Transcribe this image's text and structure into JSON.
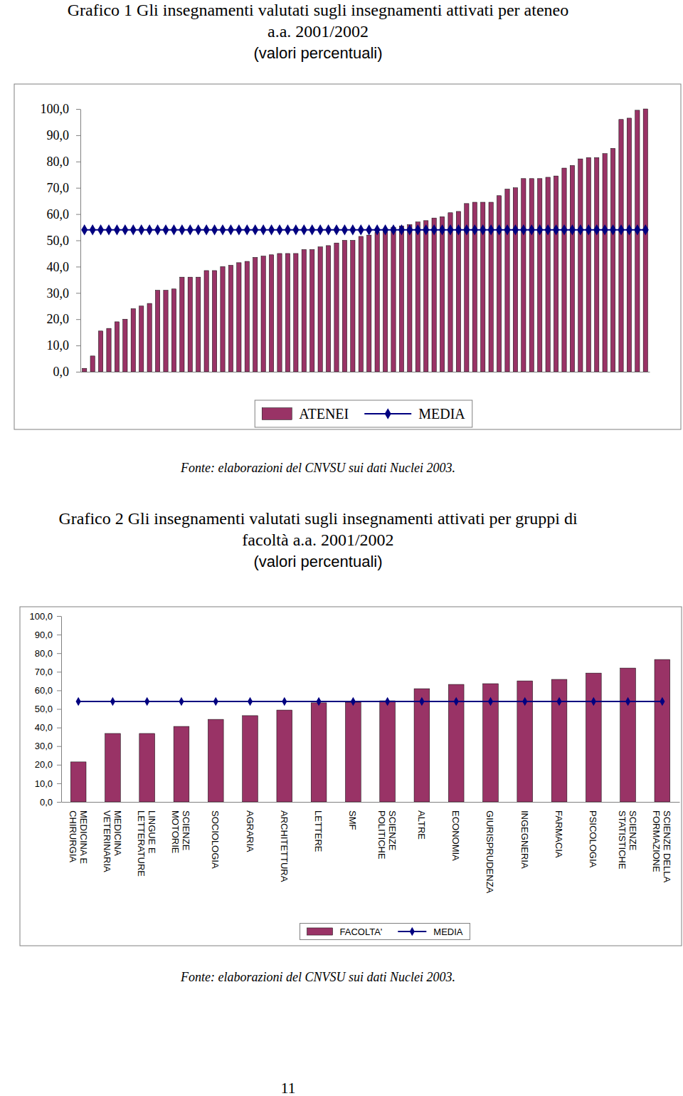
{
  "chart_data": [
    {
      "type": "bar",
      "title": "Grafico 1 Gli insegnamenti valutati sugli insegnamenti attivati per ateneo a.a. 2001/2002",
      "subtitle": "(valori percentuali)",
      "categories": [
        null,
        null,
        null,
        null,
        null,
        null,
        null,
        null,
        null,
        null,
        null,
        null,
        null,
        null,
        null,
        null,
        null,
        null,
        null,
        null,
        null,
        null,
        null,
        null,
        null,
        null,
        null,
        null,
        null,
        null,
        null,
        null,
        null,
        null,
        null,
        null,
        null,
        null,
        null,
        null,
        null,
        null,
        null,
        null,
        null,
        null,
        null,
        null,
        null,
        null,
        null,
        null,
        null,
        null,
        null,
        null,
        null,
        null,
        null,
        null,
        null,
        null,
        null,
        null,
        null,
        null,
        null,
        null,
        null,
        null
      ],
      "series": [
        {
          "name": "ATENEI",
          "type": "bar",
          "color": "#993366",
          "values": [
            1.3,
            6,
            15.5,
            16.5,
            19,
            20,
            24,
            25,
            26,
            31,
            31,
            31.5,
            36,
            36,
            36,
            38.5,
            38.5,
            40,
            40.5,
            41.5,
            42,
            43.5,
            44,
            44.5,
            45,
            45,
            45,
            46.5,
            46.5,
            47.5,
            48,
            49,
            50,
            50,
            51.5,
            52,
            53,
            54,
            55,
            55.5,
            56,
            57,
            57.5,
            58.5,
            59,
            60.5,
            61,
            64,
            64.5,
            64.5,
            64.5,
            67,
            69.5,
            70,
            73.5,
            73.5,
            73.5,
            74,
            74.5,
            77.5,
            78.5,
            81,
            81.5,
            81.5,
            83,
            85,
            96,
            96.5,
            99.5,
            100
          ]
        },
        {
          "name": "MEDIA",
          "type": "line",
          "color": "#000080",
          "marker": "diamond",
          "values": [
            54,
            54,
            54,
            54,
            54,
            54,
            54,
            54,
            54,
            54,
            54,
            54,
            54,
            54,
            54,
            54,
            54,
            54,
            54,
            54,
            54,
            54,
            54,
            54,
            54,
            54,
            54,
            54,
            54,
            54,
            54,
            54,
            54,
            54,
            54,
            54,
            54,
            54,
            54,
            54,
            54,
            54,
            54,
            54,
            54,
            54,
            54,
            54,
            54,
            54,
            54,
            54,
            54,
            54,
            54,
            54,
            54,
            54,
            54,
            54,
            54,
            54,
            54,
            54,
            54,
            54,
            54,
            54,
            54,
            54
          ]
        }
      ],
      "ylim": [
        0,
        100
      ],
      "yticks": [
        {
          "value": 0,
          "label": "0,0"
        },
        {
          "value": 10,
          "label": "10,0"
        },
        {
          "value": 20,
          "label": "20,0"
        },
        {
          "value": 30,
          "label": "30,0"
        },
        {
          "value": 40,
          "label": "40,0"
        },
        {
          "value": 50,
          "label": "50,0"
        },
        {
          "value": 60,
          "label": "60,0"
        },
        {
          "value": 70,
          "label": "70,0"
        },
        {
          "value": 80,
          "label": "80,0"
        },
        {
          "value": 90,
          "label": "90,0"
        },
        {
          "value": 100,
          "label": "100,0"
        }
      ],
      "grid": false,
      "legend": "bottom",
      "annotations": [
        "Fonte: elaborazioni del CNVSU sui dati Nuclei 2003."
      ]
    },
    {
      "type": "bar",
      "title": "Grafico 2 Gli insegnamenti valutati sugli insegnamenti attivati per gruppi di facoltà a.a. 2001/2002",
      "subtitle": "(valori percentuali)",
      "categories": [
        "MEDICINA E CHIRURGIA",
        "MEDICINA VETERINARIA",
        "LINGUE E LETTERATURE",
        "SCIENZE MOTORIE",
        "SOCIOLOGIA",
        "AGRARIA",
        "ARCHITETTURA",
        "LETTERE",
        "SMF",
        "SCIENZE POLITICHE",
        "ALTRE",
        "ECONOMIA",
        "GIURISPRUDENZA",
        "INGEGNERIA",
        "FARMACIA",
        "PSICOLOGIA",
        "SCIENZE STATISTICHE",
        "SCIENZE DELLA FORMAZIONE"
      ],
      "series": [
        {
          "name": "FACOLTA'",
          "type": "bar",
          "color": "#993366",
          "values": [
            21.5,
            36.8,
            36.8,
            40.6,
            44.4,
            46.4,
            49.4,
            53.3,
            53.6,
            54.4,
            60.9,
            63.2,
            63.6,
            65.1,
            65.9,
            69.3,
            72.0,
            76.6
          ]
        },
        {
          "name": "MEDIA",
          "type": "line",
          "color": "#000080",
          "marker": "diamond",
          "values": [
            54,
            54,
            54,
            54,
            54,
            54,
            54,
            54,
            54,
            54,
            54,
            54,
            54,
            54,
            54,
            54,
            54,
            54
          ]
        }
      ],
      "ylim": [
        0,
        100
      ],
      "yticks": [
        {
          "value": 0,
          "label": "0,0"
        },
        {
          "value": 10,
          "label": "10,0"
        },
        {
          "value": 20,
          "label": "20,0"
        },
        {
          "value": 30,
          "label": "30,0"
        },
        {
          "value": 40,
          "label": "40,0"
        },
        {
          "value": 50,
          "label": "50,0"
        },
        {
          "value": 60,
          "label": "60,0"
        },
        {
          "value": 70,
          "label": "70,0"
        },
        {
          "value": 80,
          "label": "80,0"
        },
        {
          "value": 90,
          "label": "90,0"
        },
        {
          "value": 100,
          "label": "100,0"
        }
      ],
      "grid": false,
      "legend": "bottom",
      "annotations": [
        "Fonte: elaborazioni del CNVSU sui dati Nuclei 2003."
      ]
    }
  ],
  "page": {
    "number": "11"
  }
}
